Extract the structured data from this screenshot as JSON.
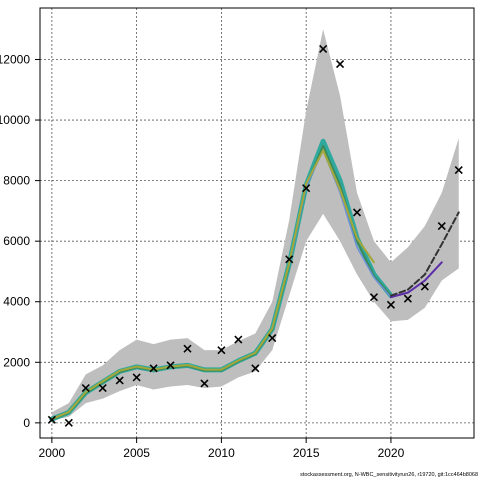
{
  "chart_data": {
    "type": "line",
    "title": "",
    "xlabel": "",
    "ylabel": "",
    "xlim": [
      1999.3,
      2024.9
    ],
    "ylim": [
      -500,
      13700
    ],
    "xticks": [
      2000,
      2005,
      2010,
      2015,
      2020
    ],
    "yticks": [
      0,
      2000,
      4000,
      6000,
      8000,
      10000,
      12000
    ],
    "ytick_labels": [
      "0",
      "2000",
      "4000",
      "6000",
      "8000",
      "10000",
      "12000"
    ],
    "grid": true,
    "legend": "none",
    "series": [
      {
        "kind": "band",
        "color": "#bebebe",
        "x": [
          2000,
          2001,
          2002,
          2003,
          2004,
          2005,
          2006,
          2007,
          2008,
          2009,
          2010,
          2011,
          2012,
          2013,
          2014,
          2015,
          2016,
          2017,
          2018,
          2019,
          2020,
          2021,
          2022,
          2023,
          2024
        ],
        "lower": [
          80,
          200,
          650,
          800,
          1050,
          1250,
          1100,
          1200,
          1250,
          1150,
          1200,
          1500,
          1700,
          2400,
          4200,
          6000,
          6900,
          6000,
          4900,
          4000,
          3350,
          3400,
          3800,
          4700,
          5100
        ],
        "upper": [
          350,
          650,
          1600,
          1900,
          2400,
          2750,
          2600,
          2750,
          2800,
          2400,
          2400,
          2700,
          2950,
          4000,
          6700,
          10300,
          13000,
          10800,
          7600,
          6000,
          5300,
          5800,
          6500,
          7600,
          9400
        ]
      },
      {
        "kind": "line",
        "color": "#2fa89e",
        "width": 5,
        "x": [
          2000,
          2001,
          2002,
          2003,
          2004,
          2005,
          2006,
          2007,
          2008,
          2009,
          2010,
          2011,
          2012,
          2013,
          2014,
          2015,
          2016,
          2017,
          2018,
          2019,
          2020
        ],
        "y": [
          120,
          350,
          1000,
          1350,
          1700,
          1850,
          1750,
          1850,
          1900,
          1750,
          1750,
          2050,
          2300,
          3100,
          5250,
          7850,
          9300,
          8000,
          6100,
          4900,
          4200
        ]
      },
      {
        "kind": "line",
        "color": "#3b8a5a",
        "width": 2,
        "x": [
          2000,
          2001,
          2002,
          2003,
          2004,
          2005,
          2006,
          2007,
          2008,
          2009,
          2010,
          2011,
          2012,
          2013,
          2014,
          2015,
          2016,
          2017,
          2018,
          2019,
          2020
        ],
        "y": [
          110,
          340,
          980,
          1330,
          1680,
          1830,
          1730,
          1830,
          1880,
          1730,
          1730,
          2030,
          2280,
          3080,
          5230,
          7820,
          9150,
          7850,
          6000,
          4850,
          4200
        ]
      },
      {
        "kind": "line",
        "color": "#6a8fd8",
        "width": 1.5,
        "x": [
          2014,
          2015,
          2016,
          2017,
          2018,
          2019,
          2020
        ],
        "y": [
          5200,
          7800,
          9000,
          7600,
          5800,
          4800,
          4150
        ]
      },
      {
        "kind": "line",
        "color": "#a4a83b",
        "width": 2,
        "x": [
          2000,
          2001,
          2002,
          2003,
          2004,
          2005,
          2006,
          2007,
          2008,
          2009,
          2010,
          2011,
          2012,
          2013,
          2014,
          2015,
          2016,
          2017,
          2018,
          2019
        ],
        "y": [
          130,
          360,
          1020,
          1370,
          1720,
          1860,
          1760,
          1860,
          1910,
          1760,
          1760,
          2060,
          2310,
          3120,
          5280,
          7900,
          9000,
          7700,
          6100,
          5300
        ]
      },
      {
        "kind": "line",
        "color": "#5b2da8",
        "width": 2,
        "x": [
          2020,
          2021,
          2022,
          2023
        ],
        "y": [
          4150,
          4300,
          4700,
          5300
        ]
      },
      {
        "kind": "line",
        "color": "#333333",
        "width": 2,
        "dash": "6,3",
        "x": [
          2020,
          2021,
          2022,
          2023,
          2024
        ],
        "y": [
          4200,
          4400,
          4900,
          5900,
          6950
        ]
      },
      {
        "kind": "points",
        "marker": "x",
        "color": "#000000",
        "x": [
          2000,
          2001,
          2002,
          2003,
          2004,
          2005,
          2006,
          2007,
          2008,
          2009,
          2010,
          2011,
          2012,
          2013,
          2014,
          2015,
          2016,
          2017,
          2018,
          2019,
          2020,
          2021,
          2022,
          2023,
          2024
        ],
        "y": [
          100,
          0,
          1150,
          1150,
          1400,
          1500,
          1800,
          1900,
          2450,
          1300,
          2400,
          2750,
          1800,
          2800,
          5400,
          7750,
          12350,
          11850,
          6950,
          4150,
          3900,
          4100,
          4500,
          6500,
          8350
        ]
      }
    ]
  },
  "footer": {
    "source": "stockassessment.org, N-WBC_sensitivityrun26, r19720, git:1cc464b8068"
  }
}
